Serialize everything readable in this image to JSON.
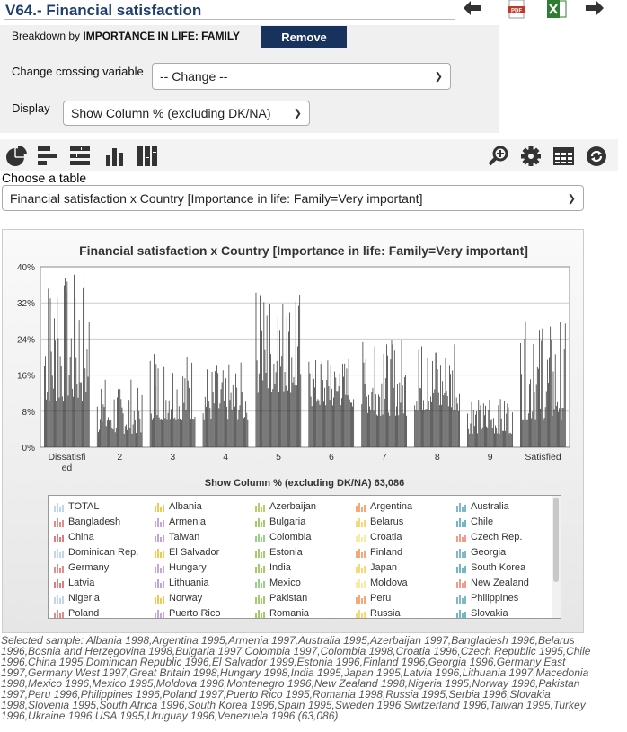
{
  "header": {
    "title": "V64.- Financial satisfaction"
  },
  "top_icons": [
    "arrow-left-icon",
    "pdf-icon",
    "excel-icon",
    "arrow-right-icon"
  ],
  "breakdown": {
    "prefix": "Breakdown by ",
    "variable": "IMPORTANCE IN LIFE: FAMILY",
    "remove_label": "Remove"
  },
  "crossing": {
    "label": "Change crossing variable",
    "value": "-- Change --"
  },
  "display": {
    "label": "Display",
    "value": "Show Column % (excluding DK/NA)"
  },
  "toolbar": {
    "left": [
      "pie-chart-icon",
      "horizontal-bar-icon",
      "stacked-bar-icon",
      "column-chart-icon",
      "stacked-column-icon"
    ],
    "right": [
      "zoom-icon",
      "settings-icon",
      "table-icon",
      "refresh-icon"
    ]
  },
  "table_choice": {
    "label": "Choose a table",
    "value": "Financial satisfaction x Country [Importance in life: Family=Very important]"
  },
  "chart_data": {
    "type": "bar",
    "title": "Financial satisfaction x Country [Importance in life: Family=Very important]",
    "xlabel": "Show Column % (excluding DK/NA) 63,086",
    "ylabel": "",
    "categories": [
      "Dissatisfied",
      "2",
      "3",
      "4",
      "5",
      "6",
      "7",
      "8",
      "9",
      "Satisfied"
    ],
    "y_ticks": [
      "0%",
      "8%",
      "16%",
      "24%",
      "32%",
      "40%"
    ],
    "ylim": [
      0,
      40
    ],
    "grid": true,
    "bar_color": "#333333",
    "category_ranges": [
      [
        10,
        39
      ],
      [
        3,
        16
      ],
      [
        6,
        22
      ],
      [
        6,
        19
      ],
      [
        12,
        36
      ],
      [
        9,
        20
      ],
      [
        7,
        24
      ],
      [
        8,
        24
      ],
      [
        3,
        11
      ],
      [
        6,
        28
      ]
    ]
  },
  "legend": {
    "items": [
      {
        "name": "TOTAL",
        "color": "#bcd7ee"
      },
      {
        "name": "Albania",
        "color": "#f2c94c"
      },
      {
        "name": "Azerbaijan",
        "color": "#b6cf6b"
      },
      {
        "name": "Argentina",
        "color": "#f5a97a"
      },
      {
        "name": "Australia",
        "color": "#7fb8c9"
      },
      {
        "name": "Bangladesh",
        "color": "#e88a8a"
      },
      {
        "name": "Armenia",
        "color": "#c8a6d8"
      },
      {
        "name": "Bulgaria",
        "color": "#a6c96a"
      },
      {
        "name": "Belarus",
        "color": "#f7d87a"
      },
      {
        "name": "Chile",
        "color": "#72b7c8"
      },
      {
        "name": "China",
        "color": "#e27b7b"
      },
      {
        "name": "Taiwan",
        "color": "#c3a3d6"
      },
      {
        "name": "Colombia",
        "color": "#9bd08b"
      },
      {
        "name": "Croatia",
        "color": "#f9eaa6"
      },
      {
        "name": "Czech Rep.",
        "color": "#f29b8a"
      },
      {
        "name": "Dominican Rep.",
        "color": "#bcd7ee"
      },
      {
        "name": "El Salvador",
        "color": "#f2c94c"
      },
      {
        "name": "Estonia",
        "color": "#a9c96f"
      },
      {
        "name": "Finland",
        "color": "#f5a97a"
      },
      {
        "name": "Georgia",
        "color": "#7fb8c9"
      },
      {
        "name": "Germany",
        "color": "#e88a8a"
      },
      {
        "name": "Hungary",
        "color": "#c8a6d8"
      },
      {
        "name": "India",
        "color": "#a6c96a"
      },
      {
        "name": "Japan",
        "color": "#f7d87a"
      },
      {
        "name": "South Korea",
        "color": "#72b7c8"
      },
      {
        "name": "Latvia",
        "color": "#e27b7b"
      },
      {
        "name": "Lithuania",
        "color": "#c3a3d6"
      },
      {
        "name": "Mexico",
        "color": "#9bd08b"
      },
      {
        "name": "Moldova",
        "color": "#f9eaa6"
      },
      {
        "name": "New Zealand",
        "color": "#f29b8a"
      },
      {
        "name": "Nigeria",
        "color": "#bcd7ee"
      },
      {
        "name": "Norway",
        "color": "#f2c94c"
      },
      {
        "name": "Pakistan",
        "color": "#a9c96f"
      },
      {
        "name": "Peru",
        "color": "#f5a97a"
      },
      {
        "name": "Philippines",
        "color": "#7fb8c9"
      },
      {
        "name": "Poland",
        "color": "#e88a8a"
      },
      {
        "name": "Puerto Rico",
        "color": "#c8a6d8"
      },
      {
        "name": "Romania",
        "color": "#a6c96a"
      },
      {
        "name": "Russia",
        "color": "#f7d87a"
      },
      {
        "name": "Slovakia",
        "color": "#72b7c8"
      }
    ]
  },
  "sample_text": "Selected sample: Albania 1998,Argentina 1995,Armenia 1997,Australia 1995,Azerbaijan 1997,Bangladesh 1996,Belarus 1996,Bosnia and Herzegovina 1998,Bulgaria 1997,Colombia 1997,Colombia 1998,Croatia 1996,Czech Republic 1995,Chile 1996,China 1995,Dominican Republic 1996,El Salvador 1999,Estonia 1996,Finland 1996,Georgia 1996,Germany East 1997,Germany West 1997,Great Britain 1998,Hungary 1998,India 1995,Japan 1995,Latvia 1996,Lithuania 1997,Macedonia 1998,Mexico 1996,Mexico 1995,Moldova 1996,Montenegro 1996,New Zealand 1998,Nigeria 1995,Norway 1996,Pakistan 1997,Peru 1996,Philippines 1996,Poland 1997,Puerto Rico 1995,Romania 1998,Russia 1995,Serbia 1996,Slovakia 1998,Slovenia 1995,South Africa 1996,South Korea 1996,Spain 1995,Sweden 1996,Switzerland 1996,Taiwan 1995,Turkey 1996,Ukraine 1996,USA 1995,Uruguay 1996,Venezuela 1996 (63,086)"
}
